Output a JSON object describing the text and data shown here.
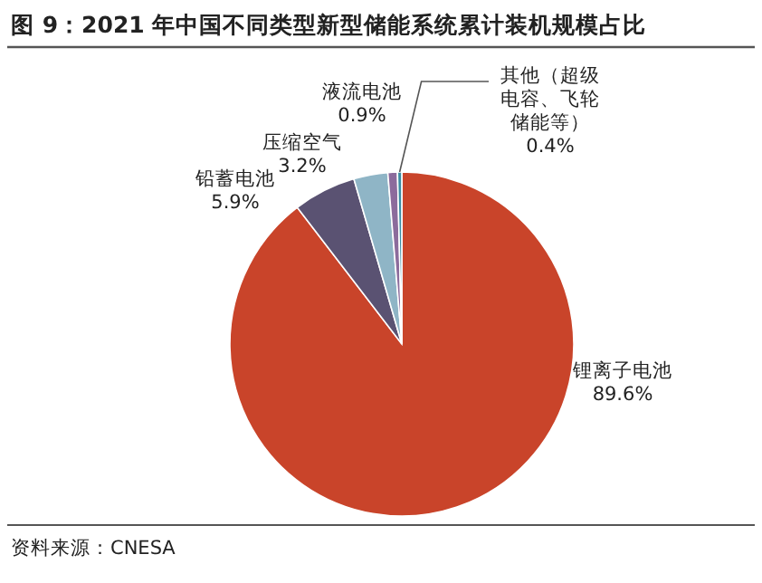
{
  "chart_data": {
    "type": "pie",
    "title": "图 9：2021 年中国不同类型新型储能系统累计装机规模占比",
    "categories": [
      "锂离子电池",
      "铅蓄电池",
      "压缩空气",
      "液流电池",
      "其他（超级电容、飞轮储能等）"
    ],
    "values": [
      89.6,
      5.9,
      3.2,
      0.9,
      0.4
    ],
    "colors": [
      "#c9442a",
      "#5a5272",
      "#8fb5c6",
      "#8c6b9c",
      "#3a8ca2"
    ],
    "value_labels": [
      "89.6%",
      "5.9%",
      "3.2%",
      "0.9%",
      "0.4%"
    ],
    "annotations": [
      "资料来源：CNESA"
    ],
    "legend": false
  }
}
